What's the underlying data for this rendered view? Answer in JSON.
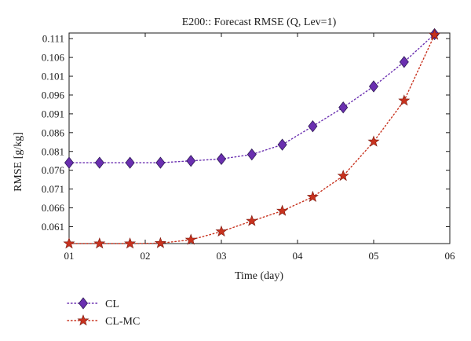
{
  "chart_data": {
    "type": "line",
    "title": "E200:: Forecast RMSE (Q, Lev=1)",
    "xlabel": "Time (day)",
    "ylabel": "RMSE [g/kg]",
    "xlim": [
      1,
      6
    ],
    "ylim": [
      0.0565,
      0.1125
    ],
    "xticks": [
      {
        "value": 1,
        "label": "01"
      },
      {
        "value": 2,
        "label": "02"
      },
      {
        "value": 3,
        "label": "03"
      },
      {
        "value": 4,
        "label": "04"
      },
      {
        "value": 5,
        "label": "05"
      },
      {
        "value": 6,
        "label": "06"
      }
    ],
    "yticks": [
      {
        "value": 0.061,
        "label": "0.061"
      },
      {
        "value": 0.066,
        "label": "0.066"
      },
      {
        "value": 0.071,
        "label": "0.071"
      },
      {
        "value": 0.076,
        "label": "0.076"
      },
      {
        "value": 0.081,
        "label": "0.081"
      },
      {
        "value": 0.086,
        "label": "0.086"
      },
      {
        "value": 0.091,
        "label": "0.091"
      },
      {
        "value": 0.096,
        "label": "0.096"
      },
      {
        "value": 0.101,
        "label": "0.101"
      },
      {
        "value": 0.106,
        "label": "0.106"
      },
      {
        "value": 0.111,
        "label": "0.111"
      }
    ],
    "grid": false,
    "legend_position": "bottom-left",
    "x": [
      1.0,
      1.4,
      1.8,
      2.2,
      2.6,
      3.0,
      3.4,
      3.8,
      4.2,
      4.6,
      5.0,
      5.4,
      5.8
    ],
    "series": [
      {
        "name": "CL",
        "color": "#6a2fb0",
        "marker": "diamond",
        "line_style": "dotted",
        "values": [
          0.078,
          0.078,
          0.078,
          0.078,
          0.0785,
          0.079,
          0.0802,
          0.0828,
          0.0877,
          0.0927,
          0.0983,
          0.1048,
          0.1122
        ]
      },
      {
        "name": "CL-MC",
        "color": "#c8321e",
        "marker": "star",
        "line_style": "dotted",
        "values": [
          0.0565,
          0.0565,
          0.0565,
          0.0566,
          0.0575,
          0.0597,
          0.0625,
          0.0652,
          0.0689,
          0.0745,
          0.0836,
          0.0945,
          0.112
        ]
      }
    ]
  }
}
